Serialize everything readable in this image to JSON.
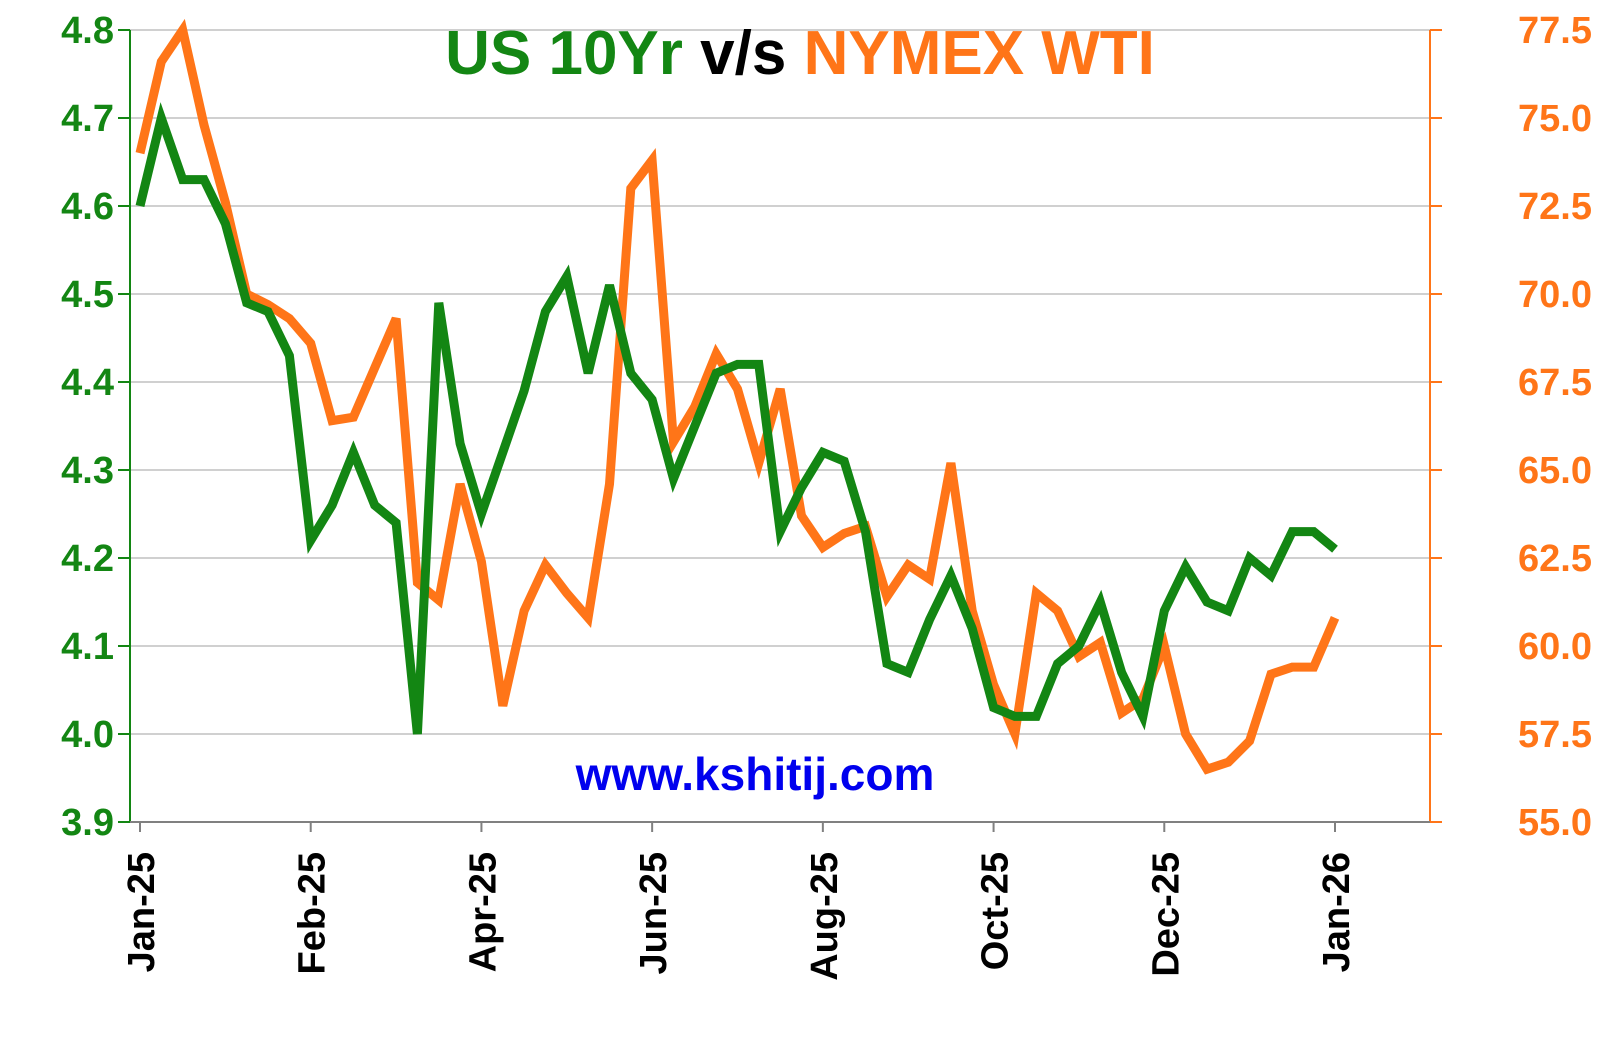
{
  "chart_data": {
    "type": "line",
    "title": {
      "part1": "US 10Yr",
      "part2": " v/s ",
      "part3": "NYMEX WTI"
    },
    "watermark": "www.kshitij.com",
    "colors": {
      "us10yr": "#138613",
      "wti": "#ff7518",
      "grid": "#c0c0c0",
      "watermark": "#0000ee",
      "title_middle": "#000000"
    },
    "left_axis": {
      "ticks": [
        "3.9",
        "4.0",
        "4.1",
        "4.2",
        "4.3",
        "4.4",
        "4.5",
        "4.6",
        "4.7",
        "4.8"
      ],
      "range": [
        3.9,
        4.8
      ]
    },
    "right_axis": {
      "ticks": [
        "55.0",
        "57.5",
        "60.0",
        "62.5",
        "65.0",
        "67.5",
        "70.0",
        "72.5",
        "75.0",
        "77.5"
      ],
      "range": [
        55.0,
        77.5
      ]
    },
    "x_axis": {
      "tick_labels": [
        "Jan-25",
        "Feb-25",
        "Apr-25",
        "Jun-25",
        "Aug-25",
        "Oct-25",
        "Dec-25",
        "Jan-26"
      ],
      "tick_index": [
        0,
        8,
        16,
        24,
        32,
        40,
        48,
        56
      ],
      "count": 57
    },
    "grid": true,
    "series": [
      {
        "name": "US 10Yr",
        "axis": "left",
        "values": [
          4.6,
          4.7,
          4.63,
          4.63,
          4.58,
          4.49,
          4.48,
          4.43,
          4.22,
          4.26,
          4.32,
          4.26,
          4.24,
          4.0,
          4.49,
          4.33,
          4.25,
          4.32,
          4.39,
          4.48,
          4.52,
          4.41,
          4.51,
          4.41,
          4.38,
          4.29,
          4.35,
          4.41,
          4.42,
          4.42,
          4.23,
          4.28,
          4.32,
          4.31,
          4.23,
          4.08,
          4.07,
          4.13,
          4.18,
          4.12,
          4.03,
          4.02,
          4.02,
          4.08,
          4.1,
          4.15,
          4.07,
          4.02,
          4.14,
          4.19,
          4.15,
          4.14,
          4.2,
          4.18,
          4.23,
          4.23,
          4.21
        ]
      },
      {
        "name": "NYMEX WTI",
        "axis": "right",
        "values": [
          74.0,
          76.6,
          77.5,
          74.8,
          72.6,
          70.0,
          69.7,
          69.3,
          68.6,
          66.4,
          66.5,
          67.9,
          69.3,
          61.8,
          61.3,
          64.6,
          62.4,
          58.3,
          61.0,
          62.3,
          61.5,
          60.8,
          64.6,
          73.0,
          73.8,
          65.8,
          66.8,
          68.3,
          67.3,
          65.2,
          67.3,
          63.7,
          62.8,
          63.2,
          63.4,
          61.4,
          62.3,
          61.9,
          65.2,
          61.0,
          58.9,
          57.5,
          61.5,
          61.0,
          59.7,
          60.1,
          58.1,
          58.5,
          60.0,
          57.5,
          56.5,
          56.7,
          57.3,
          59.2,
          59.4,
          59.4,
          60.8
        ]
      }
    ]
  }
}
